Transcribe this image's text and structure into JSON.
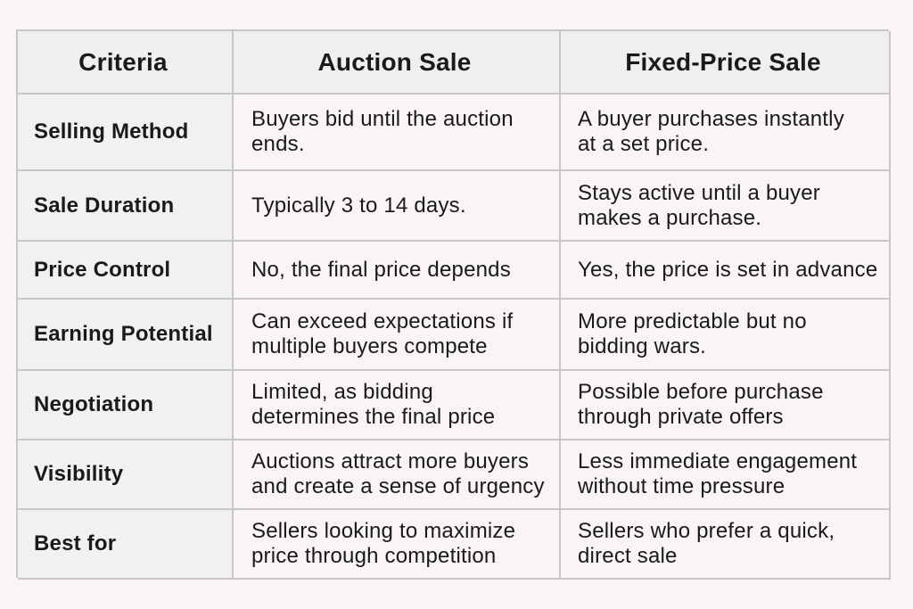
{
  "headers": {
    "criteria": "Criteria",
    "auction": "Auction Sale",
    "fixed": "Fixed-Price Sale"
  },
  "rows": [
    {
      "criteria": "Selling Method",
      "auction": "Buyers bid until the auction\nends.",
      "fixed": "A buyer purchases instantly\nat a set price."
    },
    {
      "criteria": "Sale Duration",
      "auction": "Typically 3 to 14 days.",
      "fixed": "Stays active until a buyer\nmakes a purchase."
    },
    {
      "criteria": "Price Control",
      "auction": "No, the final price depends",
      "fixed": "Yes, the price is set in advance"
    },
    {
      "criteria": "Earning Potential",
      "auction": "Can exceed expectations if\nmultiple buyers compete",
      "fixed": "More predictable but no\nbidding wars."
    },
    {
      "criteria": "Negotiation",
      "auction": "Limited, as bidding\ndetermines the final price",
      "fixed": "Possible before purchase\nthrough private offers"
    },
    {
      "criteria": "Visibility",
      "auction": "Auctions attract more buyers\nand create a sense of urgency",
      "fixed": "Less immediate engagement\nwithout time pressure"
    },
    {
      "criteria": "Best for",
      "auction": "Sellers looking to maximize\nprice through competition",
      "fixed": "Sellers who prefer a quick,\ndirect sale"
    }
  ]
}
